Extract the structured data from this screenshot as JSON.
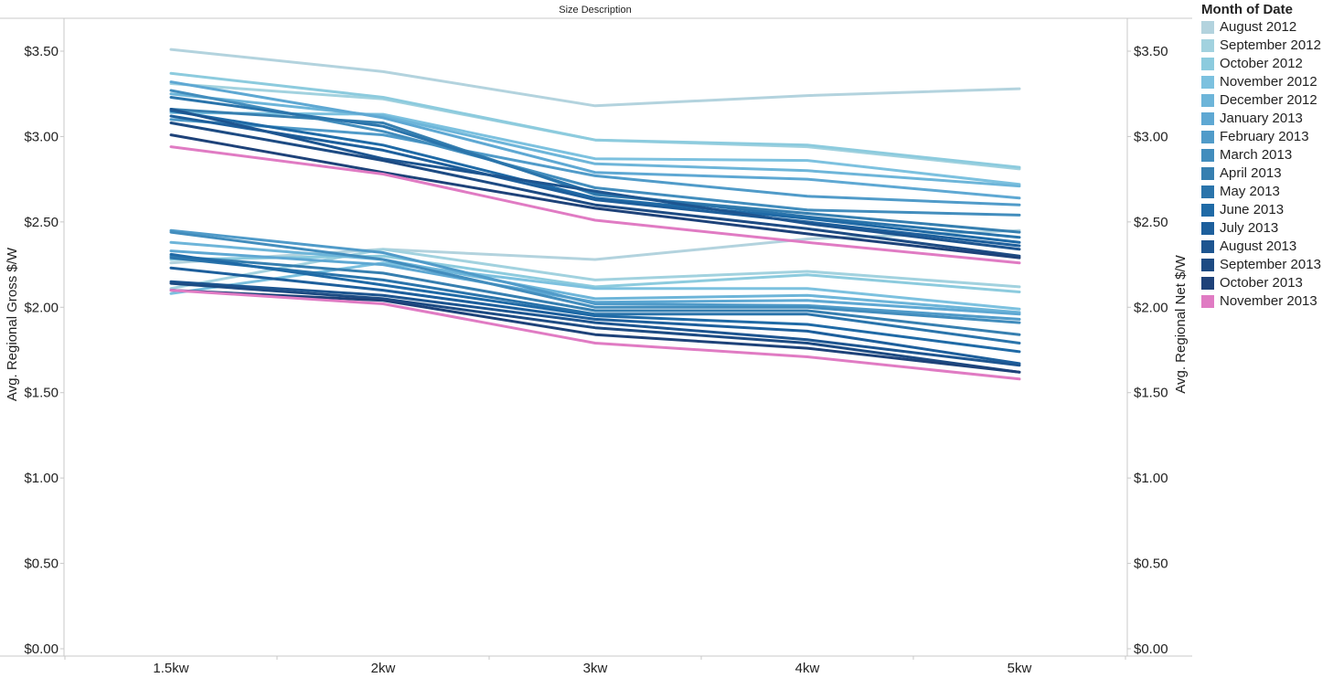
{
  "chart_data": {
    "type": "line",
    "title": "Size Description",
    "xlabel": "",
    "ylabel_left": "Avg. Regional Gross $/W",
    "ylabel_right": "Avg. Regional Net $/W",
    "categories": [
      "1.5kw",
      "2kw",
      "3kw",
      "4kw",
      "5kw"
    ],
    "ylim": [
      0,
      3.7
    ],
    "yticks": [
      0,
      0.5,
      1.0,
      1.5,
      2.0,
      2.5,
      3.0,
      3.5
    ],
    "ytick_labels": [
      "$0.00",
      "$0.50",
      "$1.00",
      "$1.50",
      "$2.00",
      "$2.50",
      "$3.00",
      "$3.50"
    ],
    "legend_title": "Month of Date",
    "series": [
      {
        "name": "August 2012",
        "color": "#b3d3de",
        "gross": [
          3.51,
          3.38,
          3.18,
          3.24,
          3.28
        ],
        "net": [
          2.26,
          2.34,
          2.28,
          2.4,
          2.45
        ]
      },
      {
        "name": "September 2012",
        "color": "#a2d2df",
        "gross": [
          3.31,
          3.22,
          2.98,
          2.94,
          2.81
        ],
        "net": [
          2.11,
          2.34,
          2.16,
          2.21,
          2.12
        ]
      },
      {
        "name": "October 2012",
        "color": "#8ccbde",
        "gross": [
          3.37,
          3.23,
          2.98,
          2.95,
          2.82
        ],
        "net": [
          2.28,
          2.3,
          2.12,
          2.19,
          2.09
        ]
      },
      {
        "name": "November 2012",
        "color": "#7cc1df",
        "gross": [
          3.14,
          3.13,
          2.87,
          2.86,
          2.72
        ],
        "net": [
          2.08,
          2.26,
          2.11,
          2.11,
          1.99
        ]
      },
      {
        "name": "December 2012",
        "color": "#6db5d9",
        "gross": [
          3.25,
          3.12,
          2.84,
          2.8,
          2.71
        ],
        "net": [
          2.38,
          2.28,
          2.05,
          2.07,
          1.97
        ]
      },
      {
        "name": "January 2013",
        "color": "#5ea8d3",
        "gross": [
          3.32,
          3.11,
          2.79,
          2.75,
          2.64
        ],
        "net": [
          2.33,
          2.25,
          2.03,
          2.04,
          1.96
        ]
      },
      {
        "name": "February 2013",
        "color": "#509bc9",
        "gross": [
          3.1,
          3.01,
          2.77,
          2.65,
          2.6
        ],
        "net": [
          2.45,
          2.32,
          2.02,
          2.01,
          1.93
        ]
      },
      {
        "name": "March 2013",
        "color": "#428dbd",
        "gross": [
          3.27,
          3.03,
          2.7,
          2.57,
          2.54
        ],
        "net": [
          2.44,
          2.28,
          2.0,
          2.0,
          1.91
        ]
      },
      {
        "name": "April 2013",
        "color": "#367fb0",
        "gross": [
          3.16,
          3.08,
          2.66,
          2.55,
          2.44
        ],
        "net": [
          2.3,
          2.2,
          1.98,
          1.98,
          1.84
        ]
      },
      {
        "name": "May 2013",
        "color": "#2a74ab",
        "gross": [
          3.23,
          3.06,
          2.67,
          2.53,
          2.41
        ],
        "net": [
          2.29,
          2.16,
          1.96,
          1.96,
          1.79
        ]
      },
      {
        "name": "June 2013",
        "color": "#1f6aa6",
        "gross": [
          3.15,
          2.95,
          2.64,
          2.52,
          2.38
        ],
        "net": [
          2.31,
          2.13,
          1.95,
          1.9,
          1.74
        ]
      },
      {
        "name": "July 2013",
        "color": "#1d5f9c",
        "gross": [
          3.12,
          2.92,
          2.63,
          2.5,
          2.36
        ],
        "net": [
          2.23,
          2.1,
          1.93,
          1.86,
          1.67
        ]
      },
      {
        "name": "August 2013",
        "color": "#1d5590",
        "gross": [
          3.16,
          2.87,
          2.68,
          2.49,
          2.34
        ],
        "net": [
          2.15,
          2.07,
          1.91,
          1.81,
          1.66
        ]
      },
      {
        "name": "September 2013",
        "color": "#1d4b83",
        "gross": [
          3.08,
          2.86,
          2.6,
          2.46,
          2.3
        ],
        "net": [
          2.14,
          2.05,
          1.88,
          1.79,
          1.62
        ]
      },
      {
        "name": "October 2013",
        "color": "#1e4279",
        "gross": [
          3.01,
          2.79,
          2.58,
          2.43,
          2.29
        ],
        "net": [
          2.1,
          2.04,
          1.84,
          1.76,
          1.62
        ]
      },
      {
        "name": "November 2013",
        "color": "#e07bc3",
        "gross": [
          2.94,
          2.78,
          2.51,
          2.38,
          2.26
        ],
        "net": [
          2.1,
          2.02,
          1.79,
          1.71,
          1.58
        ]
      }
    ]
  }
}
